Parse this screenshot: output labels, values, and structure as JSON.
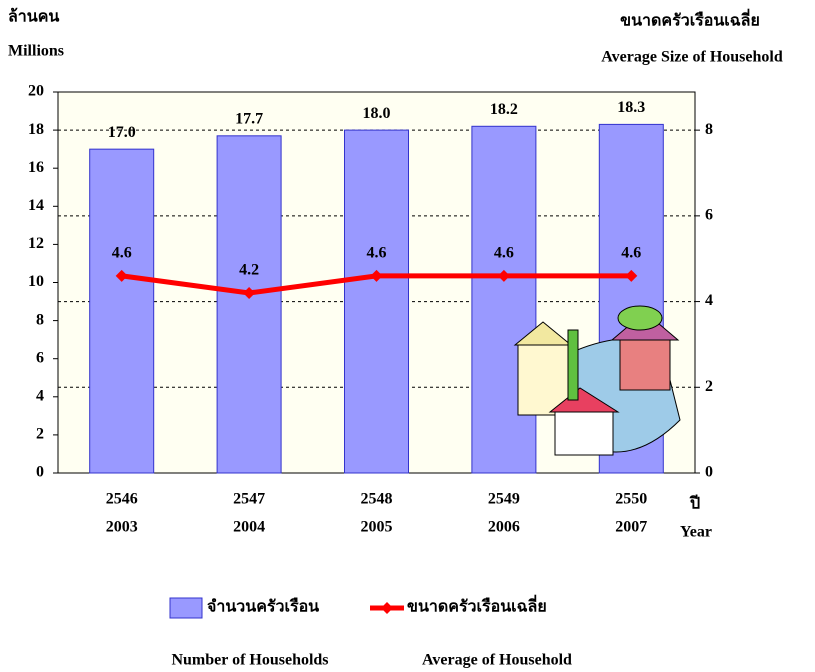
{
  "chart_data": {
    "type": "bar",
    "y_label": [
      "ล้านคน",
      "Millions"
    ],
    "y2_label": [
      "ขนาดครัวเรือนเฉลี่ย",
      "Average Size of Household"
    ],
    "x_label": [
      "ปี",
      "Year"
    ],
    "categories": [
      [
        "2546",
        "2003"
      ],
      [
        "2547",
        "2004"
      ],
      [
        "2548",
        "2005"
      ],
      [
        "2549",
        "2006"
      ],
      [
        "2550",
        "2007"
      ]
    ],
    "series": [
      {
        "name": "จำนวนครัวเรือน",
        "name_en": "Number of Households",
        "type": "bar",
        "color": "#9999ff",
        "values": [
          17,
          17.7,
          18,
          18.2,
          18.3
        ],
        "value_labels": [
          "17.0",
          "17.7",
          "18.0",
          "18.2",
          "18.3"
        ]
      },
      {
        "name": "ขนาดครัวเรือนเฉลี่ย",
        "name_en": "Average of Household",
        "type": "line",
        "axis": "y2",
        "color": "#ff0000",
        "values": [
          4.6,
          4.2,
          4.6,
          4.6,
          4.6
        ]
      }
    ],
    "ylim": [
      0,
      20
    ],
    "yticks": [
      0,
      2,
      4,
      6,
      8,
      10,
      12,
      14,
      16,
      18,
      20
    ],
    "y2lim": [
      0,
      8.89
    ],
    "y2ticks": [
      0,
      2,
      4,
      6,
      8
    ],
    "grid": "y2",
    "legend": "bottom"
  }
}
